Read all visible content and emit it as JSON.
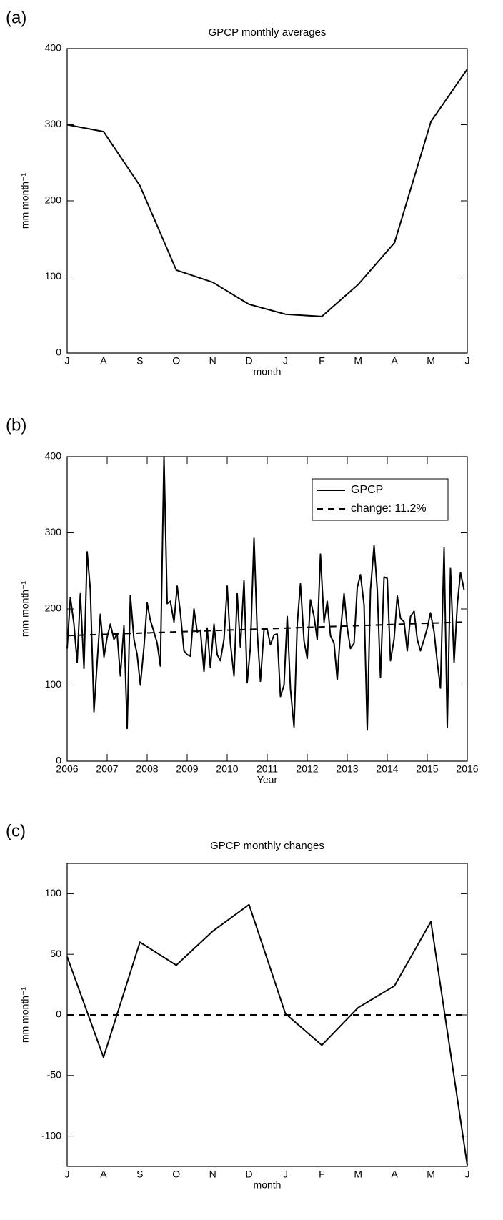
{
  "chart_data": [
    {
      "type": "line",
      "panel_label": "(a)",
      "title": "GPCP monthly averages",
      "xlabel": "month",
      "ylabel": "mm month⁻¹",
      "categories": [
        "J",
        "A",
        "S",
        "O",
        "N",
        "D",
        "J",
        "F",
        "M",
        "A",
        "M",
        "J"
      ],
      "values": [
        300,
        291,
        220,
        109,
        93,
        64,
        51,
        48,
        90,
        145,
        304,
        373
      ],
      "color": "#000000",
      "ylim": [
        0,
        400
      ],
      "yticks": [
        0,
        100,
        200,
        300,
        400
      ]
    },
    {
      "type": "line",
      "panel_label": "(b)",
      "xlabel": "Year",
      "ylabel": "mm month⁻¹",
      "legend": "upper right",
      "x": [
        2006,
        2006.08,
        2006.17,
        2006.25,
        2006.33,
        2006.42,
        2006.5,
        2006.58,
        2006.67,
        2006.75,
        2006.83,
        2006.92,
        2007,
        2007.08,
        2007.17,
        2007.25,
        2007.33,
        2007.42,
        2007.5,
        2007.58,
        2007.67,
        2007.75,
        2007.83,
        2007.92,
        2008,
        2008.08,
        2008.17,
        2008.25,
        2008.33,
        2008.42,
        2008.5,
        2008.58,
        2008.67,
        2008.75,
        2008.83,
        2008.92,
        2009,
        2009.08,
        2009.17,
        2009.25,
        2009.33,
        2009.42,
        2009.5,
        2009.58,
        2009.67,
        2009.75,
        2009.83,
        2009.92,
        2010,
        2010.08,
        2010.17,
        2010.25,
        2010.33,
        2010.42,
        2010.5,
        2010.58,
        2010.67,
        2010.75,
        2010.83,
        2010.92,
        2011,
        2011.08,
        2011.17,
        2011.25,
        2011.33,
        2011.42,
        2011.5,
        2011.58,
        2011.67,
        2011.75,
        2011.83,
        2011.92,
        2012,
        2012.08,
        2012.17,
        2012.25,
        2012.33,
        2012.42,
        2012.5,
        2012.58,
        2012.67,
        2012.75,
        2012.83,
        2012.92,
        2013,
        2013.08,
        2013.17,
        2013.25,
        2013.33,
        2013.42,
        2013.5,
        2013.58,
        2013.67,
        2013.75,
        2013.83,
        2013.92,
        2014,
        2014.08,
        2014.17,
        2014.25,
        2014.33,
        2014.42,
        2014.5,
        2014.58,
        2014.67,
        2014.75,
        2014.83,
        2014.92,
        2015,
        2015.08,
        2015.17,
        2015.25,
        2015.33,
        2015.42,
        2015.5,
        2015.58,
        2015.67,
        2015.75,
        2015.83,
        2015.92
      ],
      "series": [
        {
          "name": "GPCP",
          "color": "#000000",
          "linestyle": "solid",
          "values": [
            148,
            215,
            180,
            130,
            220,
            122,
            275,
            225,
            65,
            130,
            193,
            137,
            163,
            180,
            160,
            167,
            112,
            178,
            43,
            218,
            160,
            140,
            100,
            150,
            208,
            185,
            170,
            155,
            125,
            400,
            207,
            210,
            183,
            230,
            195,
            145,
            140,
            138,
            200,
            170,
            172,
            118,
            175,
            123,
            180,
            140,
            132,
            160,
            230,
            155,
            112,
            220,
            150,
            237,
            103,
            150,
            293,
            170,
            105,
            173,
            173,
            153,
            166,
            167,
            85,
            100,
            190,
            95,
            45,
            180,
            233,
            158,
            135,
            212,
            190,
            160,
            272,
            183,
            210,
            165,
            155,
            107,
            170,
            220,
            175,
            148,
            155,
            228,
            245,
            205,
            41,
            225,
            283,
            225,
            110,
            242,
            240,
            132,
            160,
            217,
            188,
            183,
            145,
            190,
            197,
            160,
            145,
            160,
            175,
            195,
            170,
            130,
            96,
            280,
            45,
            253,
            130,
            205,
            248,
            225
          ]
        },
        {
          "name": "change:  11.2%",
          "color": "#000000",
          "linestyle": "dashed",
          "x": [
            2006,
            2016
          ],
          "values": [
            165,
            183
          ]
        }
      ],
      "xlim": [
        2006,
        2016
      ],
      "xticks": [
        2006,
        2007,
        2008,
        2009,
        2010,
        2011,
        2012,
        2013,
        2014,
        2015,
        2016
      ],
      "ylim": [
        0,
        400
      ],
      "yticks": [
        0,
        100,
        200,
        300,
        400
      ]
    },
    {
      "type": "line",
      "panel_label": "(c)",
      "title": "GPCP monthly changes",
      "xlabel": "month",
      "ylabel": "mm month⁻¹",
      "categories": [
        "J",
        "A",
        "S",
        "O",
        "N",
        "D",
        "J",
        "F",
        "M",
        "A",
        "M",
        "J"
      ],
      "values": [
        48,
        -35,
        60,
        41,
        69,
        91,
        1,
        -25,
        6,
        24,
        77,
        -124
      ],
      "color": "#000000",
      "reference_line": 0,
      "ylim": [
        -125,
        125
      ],
      "yticks": [
        -100,
        -50,
        0,
        50,
        100
      ]
    }
  ]
}
